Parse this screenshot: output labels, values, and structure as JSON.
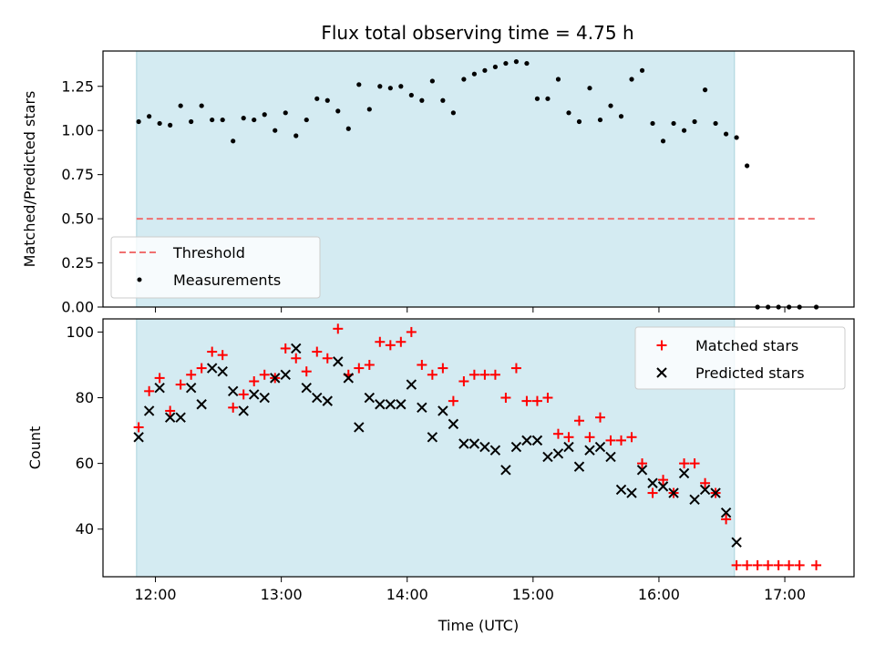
{
  "chart_data": [
    {
      "type": "scatter",
      "title": "Flux total observing time = 4.75 h",
      "xlabel": "",
      "ylabel": "Matched/Predicted stars",
      "xlim": [
        "11:35",
        "17:33"
      ],
      "ylim": [
        0,
        1.45
      ],
      "yticks": [
        "0.00",
        "0.25",
        "0.50",
        "0.75",
        "1.00",
        "1.25"
      ],
      "ytick_values": [
        0,
        0.25,
        0.5,
        0.75,
        1.0,
        1.25
      ],
      "xtick_values": [
        "12:00",
        "13:00",
        "14:00",
        "15:00",
        "16:00",
        "17:00"
      ],
      "grid": false,
      "legend_position": "lower-left",
      "shaded_interval": {
        "start": "11:51",
        "end": "16:36",
        "color": "#d4ebf2"
      },
      "threshold": {
        "name": "Threshold",
        "value": 0.5,
        "x_range": [
          "11:51",
          "17:15"
        ],
        "color": "#f07070",
        "style": "dashed"
      },
      "series": [
        {
          "name": "Measurements",
          "marker": "dot",
          "color": "#000000",
          "x": [
            "11:52",
            "11:57",
            "12:02",
            "12:07",
            "12:12",
            "12:17",
            "12:22",
            "12:27",
            "12:32",
            "12:37",
            "12:42",
            "12:47",
            "12:52",
            "12:57",
            "13:02",
            "13:07",
            "13:12",
            "13:17",
            "13:22",
            "13:27",
            "13:32",
            "13:37",
            "13:42",
            "13:47",
            "13:52",
            "13:57",
            "14:02",
            "14:07",
            "14:12",
            "14:17",
            "14:22",
            "14:27",
            "14:32",
            "14:37",
            "14:42",
            "14:47",
            "14:52",
            "14:57",
            "15:02",
            "15:07",
            "15:12",
            "15:17",
            "15:22",
            "15:27",
            "15:32",
            "15:37",
            "15:42",
            "15:47",
            "15:52",
            "15:57",
            "16:02",
            "16:07",
            "16:12",
            "16:17",
            "16:22",
            "16:27",
            "16:32",
            "16:37",
            "16:42",
            "16:47",
            "16:52",
            "16:57",
            "17:02",
            "17:07",
            "17:15"
          ],
          "y": [
            1.05,
            1.08,
            1.04,
            1.03,
            1.14,
            1.05,
            1.14,
            1.06,
            1.06,
            0.94,
            1.07,
            1.06,
            1.09,
            1.0,
            1.1,
            0.97,
            1.06,
            1.18,
            1.17,
            1.11,
            1.01,
            1.26,
            1.12,
            1.25,
            1.24,
            1.25,
            1.2,
            1.17,
            1.28,
            1.17,
            1.1,
            1.29,
            1.32,
            1.34,
            1.36,
            1.38,
            1.39,
            1.38,
            1.18,
            1.18,
            1.29,
            1.1,
            1.05,
            1.24,
            1.06,
            1.14,
            1.08,
            1.29,
            1.34,
            1.04,
            0.94,
            1.04,
            1.0,
            1.05,
            1.23,
            1.04,
            0.98,
            0.96,
            0.8,
            0.0,
            0.0,
            0.0,
            0.0,
            0.0,
            0.0
          ]
        }
      ]
    },
    {
      "type": "scatter",
      "title": "",
      "xlabel": "Time (UTC)",
      "ylabel": "Count",
      "xlim": [
        "11:35",
        "17:33"
      ],
      "ylim": [
        25.5,
        104
      ],
      "yticks": [
        "40",
        "60",
        "80",
        "100"
      ],
      "ytick_values": [
        40,
        60,
        80,
        100
      ],
      "xticks": [
        "12:00",
        "13:00",
        "14:00",
        "15:00",
        "16:00",
        "17:00"
      ],
      "grid": false,
      "legend_position": "upper-right",
      "shaded_interval": {
        "start": "11:51",
        "end": "16:36",
        "color": "#d4ebf2"
      },
      "series": [
        {
          "name": "Matched stars",
          "marker": "plus",
          "color": "#ff0000",
          "x": [
            "11:52",
            "11:57",
            "12:02",
            "12:07",
            "12:12",
            "12:17",
            "12:22",
            "12:27",
            "12:32",
            "12:37",
            "12:42",
            "12:47",
            "12:52",
            "12:57",
            "13:02",
            "13:07",
            "13:12",
            "13:17",
            "13:22",
            "13:27",
            "13:32",
            "13:37",
            "13:42",
            "13:47",
            "13:52",
            "13:57",
            "14:02",
            "14:07",
            "14:12",
            "14:17",
            "14:22",
            "14:27",
            "14:32",
            "14:37",
            "14:42",
            "14:47",
            "14:52",
            "14:57",
            "15:02",
            "15:07",
            "15:12",
            "15:17",
            "15:22",
            "15:27",
            "15:32",
            "15:37",
            "15:42",
            "15:47",
            "15:52",
            "15:57",
            "16:02",
            "16:07",
            "16:12",
            "16:17",
            "16:22",
            "16:27",
            "16:32",
            "16:37",
            "16:42",
            "16:47",
            "16:52",
            "16:57",
            "17:02",
            "17:07",
            "17:15"
          ],
          "y": [
            71,
            82,
            86,
            76,
            84,
            87,
            89,
            94,
            93,
            77,
            81,
            85,
            87,
            86,
            95,
            92,
            88,
            94,
            92,
            101,
            87,
            89,
            90,
            97,
            96,
            97,
            100,
            90,
            87,
            89,
            79,
            85,
            87,
            87,
            87,
            80,
            89,
            79,
            79,
            80,
            69,
            68,
            73,
            68,
            74,
            67,
            67,
            68,
            60,
            51,
            55,
            51,
            60,
            60,
            54,
            51,
            43,
            29,
            29,
            29,
            29,
            29,
            29,
            29,
            29
          ]
        },
        {
          "name": "Predicted stars",
          "marker": "x",
          "color": "#000000",
          "x": [
            "11:52",
            "11:57",
            "12:02",
            "12:07",
            "12:12",
            "12:17",
            "12:22",
            "12:27",
            "12:32",
            "12:37",
            "12:42",
            "12:47",
            "12:52",
            "12:57",
            "13:02",
            "13:07",
            "13:12",
            "13:17",
            "13:22",
            "13:27",
            "13:32",
            "13:37",
            "13:42",
            "13:47",
            "13:52",
            "13:57",
            "14:02",
            "14:07",
            "14:12",
            "14:17",
            "14:22",
            "14:27",
            "14:32",
            "14:37",
            "14:42",
            "14:47",
            "14:52",
            "14:57",
            "15:02",
            "15:07",
            "15:12",
            "15:17",
            "15:22",
            "15:27",
            "15:32",
            "15:37",
            "15:42",
            "15:47",
            "15:52",
            "15:57",
            "16:02",
            "16:07",
            "16:12",
            "16:17",
            "16:22",
            "16:27",
            "16:32",
            "16:37"
          ],
          "y": [
            68,
            76,
            83,
            74,
            74,
            83,
            78,
            89,
            88,
            82,
            76,
            81,
            80,
            86,
            87,
            95,
            83,
            80,
            79,
            91,
            86,
            71,
            80,
            78,
            78,
            78,
            84,
            77,
            68,
            76,
            72,
            66,
            66,
            65,
            64,
            58,
            65,
            67,
            67,
            62,
            63,
            65,
            59,
            64,
            65,
            62,
            52,
            51,
            58,
            54,
            53,
            51,
            57,
            49,
            52,
            51,
            45,
            36
          ]
        }
      ]
    }
  ]
}
